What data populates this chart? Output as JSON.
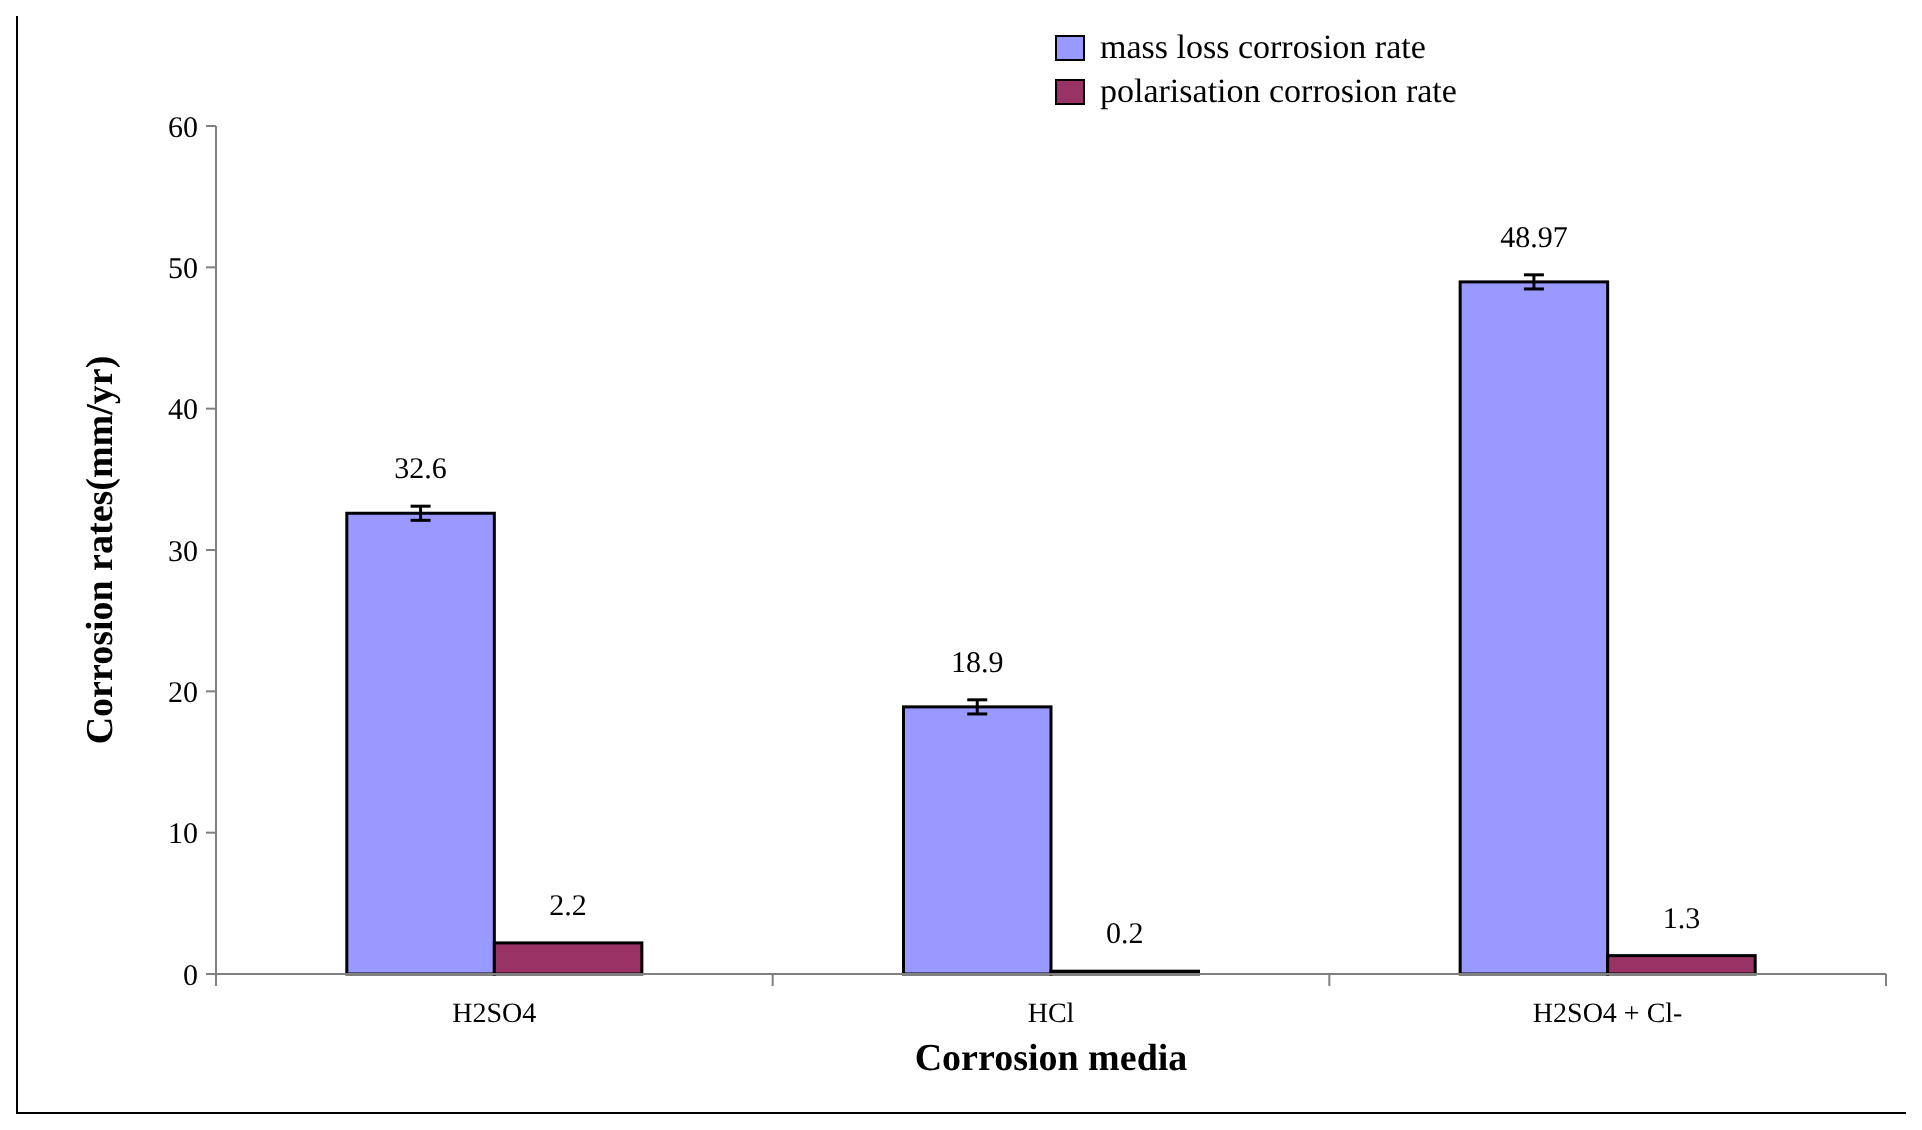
{
  "chart_data": {
    "type": "bar",
    "xlabel": "Corrosion media",
    "ylabel": "Corrosion rates(mm/yr)",
    "categories": [
      "H2SO4",
      "HCl",
      "H2SO4 + Cl-"
    ],
    "series": [
      {
        "name": "mass loss corrosion rate",
        "color": "#9999ff",
        "values": [
          32.6,
          18.9,
          48.97
        ],
        "errors": [
          0.5,
          0.5,
          0.5
        ]
      },
      {
        "name": "polarisation corrosion rate",
        "color": "#993366",
        "values": [
          2.2,
          0.2,
          1.3
        ]
      }
    ],
    "ylim": [
      0,
      60
    ],
    "yticks": [
      0,
      10,
      20,
      30,
      40,
      50,
      60
    ],
    "grid": false,
    "legend": "top right",
    "data_labels": true
  }
}
